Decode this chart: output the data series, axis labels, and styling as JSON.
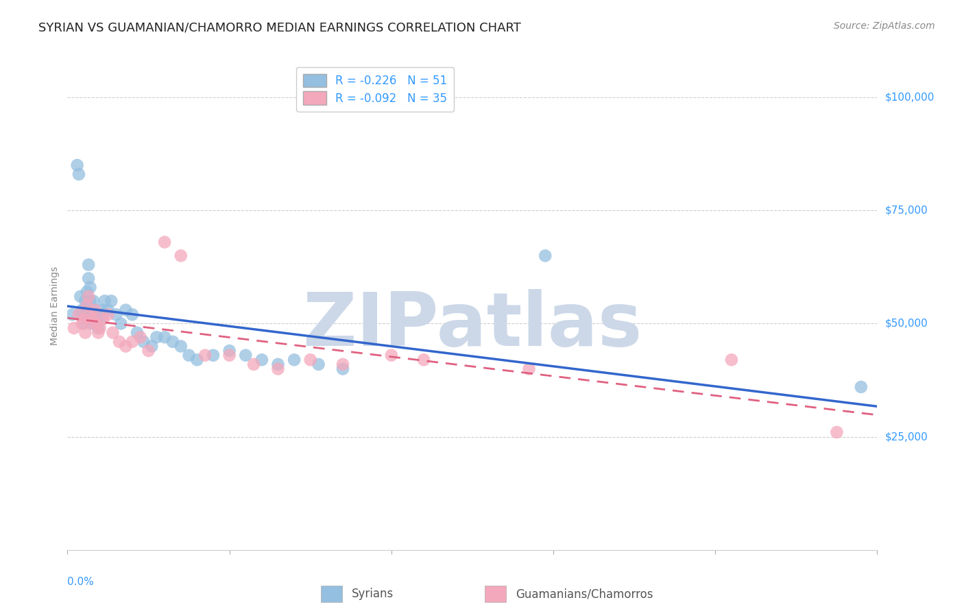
{
  "title": "SYRIAN VS GUAMANIAN/CHAMORRO MEDIAN EARNINGS CORRELATION CHART",
  "source": "Source: ZipAtlas.com",
  "ylabel": "Median Earnings",
  "y_tick_labels": [
    "$25,000",
    "$50,000",
    "$75,000",
    "$100,000"
  ],
  "y_tick_values": [
    25000,
    50000,
    75000,
    100000
  ],
  "xlim": [
    0.0,
    0.5
  ],
  "ylim": [
    0,
    108000
  ],
  "R_blue": -0.226,
  "N_blue": 51,
  "R_pink": -0.092,
  "N_pink": 35,
  "blue_color": "#94bfe0",
  "pink_color": "#f4a8bc",
  "trendline_blue": "#3366cc",
  "trendline_pink": "#e06080",
  "background_color": "#ffffff",
  "watermark_text": "ZIPatlas",
  "watermark_color": "#ccd8e8",
  "title_fontsize": 13,
  "axis_label_fontsize": 10,
  "tick_fontsize": 11,
  "legend_fontsize": 12,
  "blue_x": [
    0.003,
    0.006,
    0.007,
    0.008,
    0.009,
    0.01,
    0.01,
    0.011,
    0.012,
    0.012,
    0.013,
    0.013,
    0.014,
    0.014,
    0.015,
    0.015,
    0.016,
    0.016,
    0.017,
    0.018,
    0.018,
    0.019,
    0.02,
    0.021,
    0.022,
    0.023,
    0.025,
    0.027,
    0.03,
    0.033,
    0.036,
    0.04,
    0.043,
    0.047,
    0.052,
    0.055,
    0.06,
    0.065,
    0.07,
    0.075,
    0.08,
    0.09,
    0.1,
    0.11,
    0.12,
    0.13,
    0.14,
    0.155,
    0.17,
    0.295,
    0.49
  ],
  "blue_y": [
    52000,
    85000,
    83000,
    56000,
    53000,
    52000,
    50000,
    55000,
    57000,
    54000,
    60000,
    63000,
    58000,
    55000,
    52000,
    50000,
    55000,
    52000,
    53000,
    52000,
    50000,
    49000,
    51000,
    53000,
    52000,
    55000,
    53000,
    55000,
    52000,
    50000,
    53000,
    52000,
    48000,
    46000,
    45000,
    47000,
    47000,
    46000,
    45000,
    43000,
    42000,
    43000,
    44000,
    43000,
    42000,
    41000,
    42000,
    41000,
    40000,
    65000,
    36000
  ],
  "pink_x": [
    0.004,
    0.007,
    0.009,
    0.01,
    0.011,
    0.012,
    0.013,
    0.014,
    0.015,
    0.016,
    0.017,
    0.018,
    0.019,
    0.02,
    0.022,
    0.025,
    0.028,
    0.032,
    0.036,
    0.04,
    0.045,
    0.05,
    0.06,
    0.07,
    0.085,
    0.1,
    0.115,
    0.13,
    0.15,
    0.17,
    0.2,
    0.22,
    0.285,
    0.41,
    0.475
  ],
  "pink_y": [
    49000,
    52000,
    50000,
    51000,
    48000,
    54000,
    56000,
    52000,
    50000,
    51000,
    53000,
    50000,
    48000,
    49000,
    51000,
    52000,
    48000,
    46000,
    45000,
    46000,
    47000,
    44000,
    68000,
    65000,
    43000,
    43000,
    41000,
    40000,
    42000,
    41000,
    43000,
    42000,
    40000,
    42000,
    26000
  ]
}
